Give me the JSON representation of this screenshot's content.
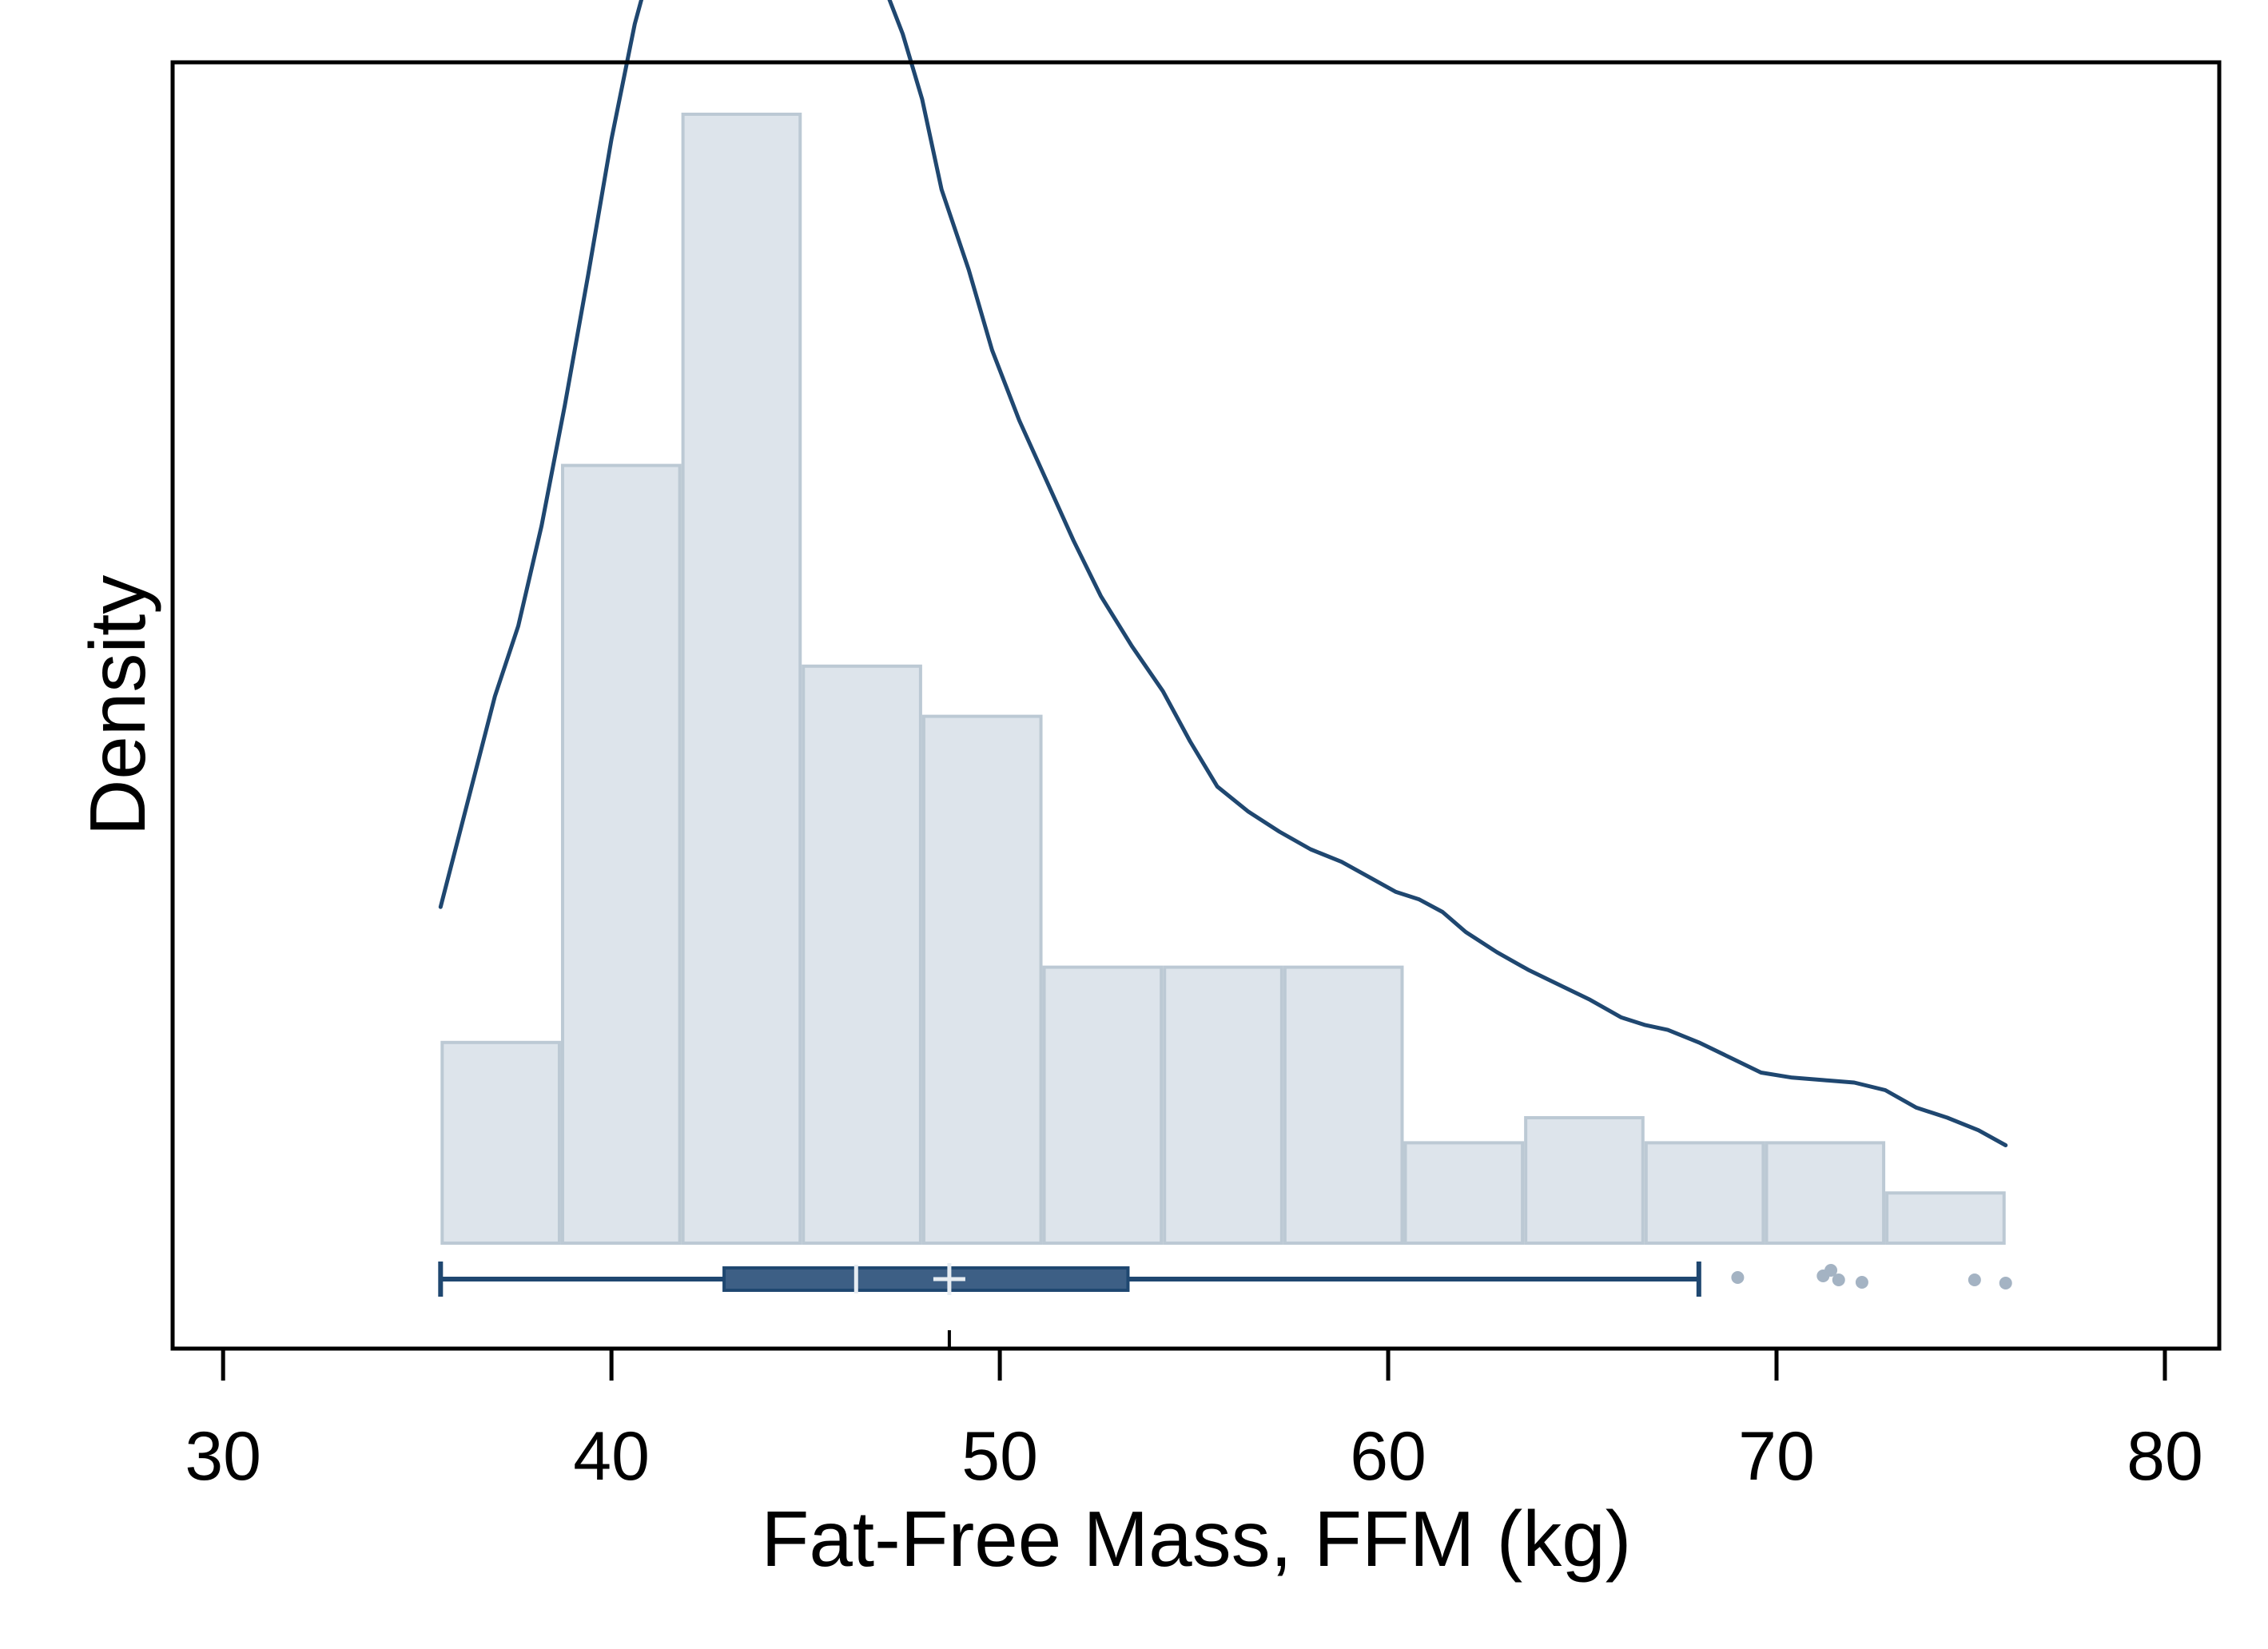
{
  "chart_data": {
    "type": "histogram",
    "xlabel": "Fat-Free Mass, FFM (kg)",
    "ylabel": "Density",
    "xlim": [
      28.7,
      81.4
    ],
    "xticks": [
      30,
      40,
      50,
      60,
      70,
      80
    ],
    "y_tick_labels_shown": false,
    "grid": false,
    "histogram": {
      "bins": [
        {
          "start": 35.6,
          "end": 38.7,
          "count": 4
        },
        {
          "start": 38.7,
          "end": 41.8,
          "count": 15.5
        },
        {
          "start": 41.8,
          "end": 44.9,
          "count": 22.5
        },
        {
          "start": 44.9,
          "end": 48.0,
          "count": 11.5
        },
        {
          "start": 48.0,
          "end": 51.1,
          "count": 10.5
        },
        {
          "start": 51.1,
          "end": 54.2,
          "count": 5.5
        },
        {
          "start": 54.2,
          "end": 57.3,
          "count": 5.5
        },
        {
          "start": 57.3,
          "end": 60.4,
          "count": 5.5
        },
        {
          "start": 60.4,
          "end": 63.5,
          "count": 2
        },
        {
          "start": 63.5,
          "end": 66.6,
          "count": 2.5
        },
        {
          "start": 66.6,
          "end": 69.7,
          "count": 2
        },
        {
          "start": 69.7,
          "end": 72.8,
          "count": 2
        },
        {
          "start": 72.8,
          "end": 75.9,
          "count": 1
        }
      ],
      "fill": "#dde4eb",
      "stroke": "#bcc9d4"
    },
    "density_curve": {
      "color": "#1f4770",
      "points": [
        [
          35.6,
          6.7
        ],
        [
          36.3,
          8.8
        ],
        [
          37.0,
          10.9
        ],
        [
          37.6,
          12.3
        ],
        [
          38.2,
          14.3
        ],
        [
          38.8,
          16.7
        ],
        [
          39.4,
          19.3
        ],
        [
          40.0,
          22.0
        ],
        [
          40.6,
          24.3
        ],
        [
          41.2,
          26.0
        ],
        [
          41.8,
          27.2
        ],
        [
          42.4,
          28.3
        ],
        [
          42.9,
          28.85
        ],
        [
          43.4,
          28.9
        ],
        [
          43.9,
          28.6
        ],
        [
          44.4,
          28.2
        ],
        [
          45.0,
          28.0
        ],
        [
          45.6,
          27.6
        ],
        [
          46.2,
          26.7
        ],
        [
          46.8,
          25.5
        ],
        [
          47.5,
          24.1
        ],
        [
          48.0,
          22.8
        ],
        [
          48.5,
          21.0
        ],
        [
          49.2,
          19.4
        ],
        [
          49.8,
          17.8
        ],
        [
          50.5,
          16.4
        ],
        [
          51.2,
          15.2
        ],
        [
          51.9,
          14.0
        ],
        [
          52.6,
          12.9
        ],
        [
          53.4,
          11.9
        ],
        [
          54.2,
          11.0
        ],
        [
          54.9,
          10.0
        ],
        [
          55.6,
          9.1
        ],
        [
          56.4,
          8.6
        ],
        [
          57.2,
          8.2
        ],
        [
          58.0,
          7.85
        ],
        [
          58.8,
          7.6
        ],
        [
          59.5,
          7.3
        ],
        [
          60.2,
          7.0
        ],
        [
          60.8,
          6.85
        ],
        [
          61.4,
          6.6
        ],
        [
          62.0,
          6.2
        ],
        [
          62.8,
          5.8
        ],
        [
          63.6,
          5.45
        ],
        [
          64.4,
          5.15
        ],
        [
          65.2,
          4.85
        ],
        [
          66.0,
          4.5
        ],
        [
          66.6,
          4.35
        ],
        [
          67.2,
          4.25
        ],
        [
          68.0,
          4.0
        ],
        [
          68.8,
          3.7
        ],
        [
          69.6,
          3.4
        ],
        [
          70.4,
          3.3
        ],
        [
          71.2,
          3.25
        ],
        [
          72.0,
          3.2
        ],
        [
          72.8,
          3.05
        ],
        [
          73.6,
          2.7
        ],
        [
          74.4,
          2.5
        ],
        [
          75.2,
          2.25
        ],
        [
          75.9,
          1.95
        ]
      ]
    },
    "boxplot": {
      "color": "#1f4770",
      "whisker_low": 35.6,
      "q1": 42.9,
      "median": 46.3,
      "mean": 48.7,
      "q3": 53.3,
      "whisker_high": 68.0,
      "outliers": [
        69.0,
        71.2,
        71.4,
        71.6,
        72.2,
        75.1,
        75.9
      ],
      "outlier_color": "#a4b3c3"
    }
  }
}
